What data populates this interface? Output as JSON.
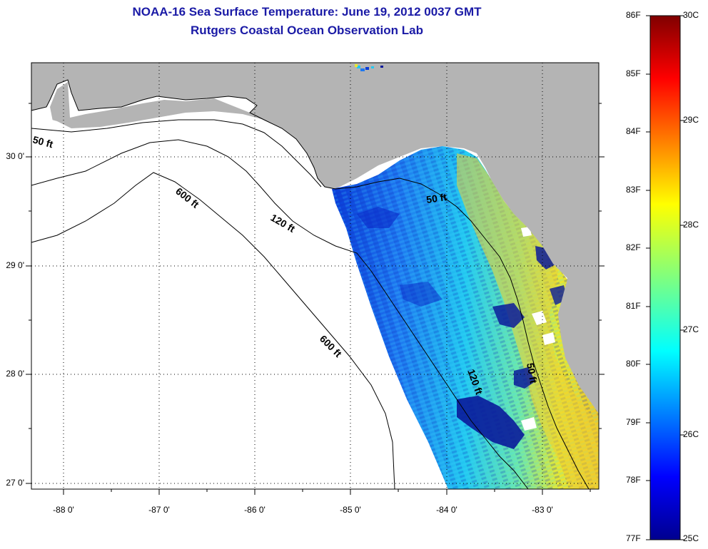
{
  "title": {
    "line1": "NOAA-16 Sea Surface Temperature:  June 19, 2012 0037 GMT",
    "line2": "Rutgers Coastal Ocean Observation Lab"
  },
  "map": {
    "lat_labels": [
      "30 0'",
      "29 0'",
      "28 0'",
      "27 0'"
    ],
    "lon_labels": [
      "-88 0'",
      "-87 0'",
      "-86 0'",
      "-85 0'",
      "-84 0'",
      "-83 0'"
    ],
    "isobath_labels": {
      "shelf_50_west": "50 ft",
      "shelf_50_east": "50 ft",
      "shelf_120_north": "120 ft",
      "shelf_120_south": "120 ft",
      "shelf_600_north": "600 ft",
      "shelf_600_south": "600 ft",
      "shelf_50_south": "50 ft"
    },
    "colors": {
      "land": "#b4b4b4",
      "ocean": "#ffffff",
      "title": "#1a1aa6"
    }
  },
  "colorbar": {
    "fahrenheit": [
      "86F",
      "85F",
      "84F",
      "83F",
      "82F",
      "81F",
      "80F",
      "79F",
      "78F",
      "77F"
    ],
    "celsius": [
      "30C",
      "29C",
      "28C",
      "27C",
      "26C",
      "25C"
    ]
  }
}
